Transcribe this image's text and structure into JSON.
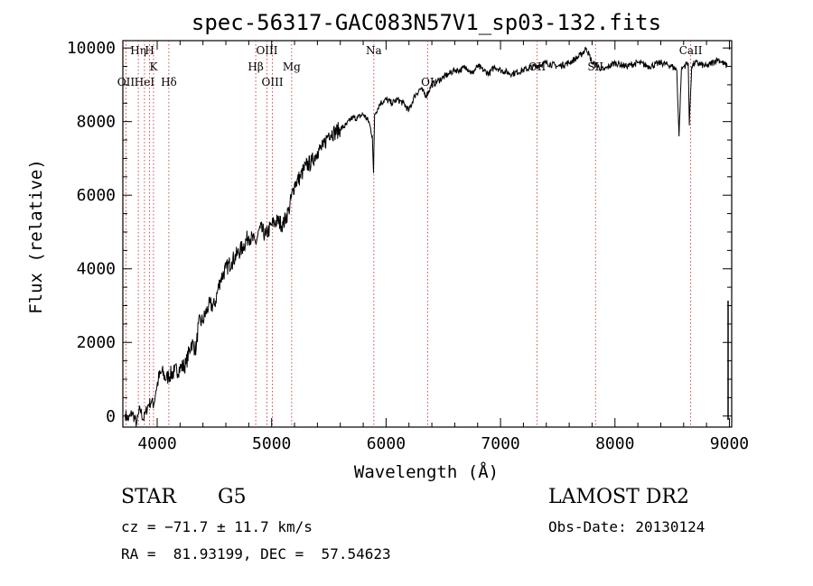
{
  "chart_data": {
    "type": "line",
    "title": "spec-56317-GAC083N57V1_sp03-132.fits",
    "xlabel": "Wavelength (Å)",
    "ylabel": "Flux (relative)",
    "xlim": [
      3700,
      9020
    ],
    "ylim": [
      -300,
      10200
    ],
    "xticks": [
      4000,
      5000,
      6000,
      7000,
      8000,
      9000
    ],
    "xtick_labels": [
      "4000",
      "5000",
      "6000",
      "7000",
      "8000",
      "9000"
    ],
    "yticks": [
      0,
      2000,
      4000,
      6000,
      8000,
      10000
    ],
    "ytick_labels": [
      "0",
      "2000",
      "4000",
      "6000",
      "8000",
      "10000"
    ],
    "grid": false,
    "series": [
      {
        "x": [
          3720,
          3750,
          3780,
          3820,
          3850,
          3880,
          3900,
          3920,
          3950,
          3970,
          3990,
          4010,
          4040,
          4080,
          4100,
          4150,
          4200,
          4250,
          4300,
          4340,
          4360,
          4400,
          4450,
          4500,
          4550,
          4600,
          4650,
          4700,
          4750,
          4800,
          4860,
          4900,
          4950,
          5000,
          5050,
          5100,
          5150,
          5200,
          5250,
          5300,
          5350,
          5400,
          5450,
          5500,
          5550,
          5600,
          5650,
          5700,
          5750,
          5800,
          5850,
          5880,
          5890,
          5900,
          5950,
          6000,
          6050,
          6100,
          6150,
          6200,
          6250,
          6300,
          6350,
          6400,
          6450,
          6500,
          6550,
          6600,
          6650,
          6700,
          6750,
          6800,
          6850,
          6900,
          6950,
          7000,
          7100,
          7200,
          7300,
          7400,
          7500,
          7600,
          7700,
          7750,
          7800,
          7900,
          8000,
          8100,
          8200,
          8300,
          8400,
          8500,
          8540,
          8560,
          8580,
          8600,
          8640,
          8650,
          8670,
          8700,
          8800,
          8900,
          8980
        ],
        "y": [
          50,
          -100,
          100,
          -200,
          200,
          -100,
          100,
          300,
          400,
          300,
          700,
          1000,
          1200,
          1000,
          1100,
          1200,
          1300,
          1400,
          2000,
          1800,
          2500,
          2600,
          3000,
          3000,
          3700,
          4000,
          4200,
          4400,
          4600,
          4900,
          4700,
          5100,
          4900,
          5200,
          5300,
          5200,
          5600,
          6300,
          6500,
          6800,
          6900,
          7200,
          7300,
          7700,
          7700,
          7800,
          7900,
          8100,
          8100,
          8200,
          8000,
          7600,
          6600,
          8200,
          8500,
          8600,
          8500,
          8600,
          8500,
          8300,
          8700,
          8900,
          8700,
          9000,
          9100,
          9200,
          9300,
          9400,
          9400,
          9500,
          9300,
          9500,
          9400,
          9300,
          9500,
          9400,
          9300,
          9400,
          9500,
          9600,
          9500,
          9600,
          9800,
          10000,
          9600,
          9400,
          9600,
          9500,
          9600,
          9500,
          9600,
          9500,
          9400,
          7600,
          9400,
          9500,
          9600,
          7900,
          9500,
          9600,
          9500,
          9700,
          9500
        ]
      }
    ],
    "spectral_lines": [
      {
        "name": "Hη",
        "x": 3835
      },
      {
        "name": "H",
        "x": 3934
      },
      {
        "name": "K",
        "x": 3968
      },
      {
        "name": "OII",
        "x": 3727
      },
      {
        "name": "HeI",
        "x": 3889
      },
      {
        "name": "Hδ",
        "x": 4102
      },
      {
        "name": "Hβ",
        "x": 4861
      },
      {
        "name": "OIII",
        "x": 4959
      },
      {
        "name": "OIII",
        "x": 5007
      },
      {
        "name": "Mg",
        "x": 5175
      },
      {
        "name": "Na",
        "x": 5893
      },
      {
        "name": "OI",
        "x": 6363
      },
      {
        "name": "OII",
        "x": 7320
      },
      {
        "name": "SII",
        "x": 7830
      },
      {
        "name": "CaII",
        "x": 8662
      }
    ]
  },
  "info": {
    "class": "STAR",
    "subclass": "G5",
    "survey": "LAMOST DR2",
    "cz": "cz = −71.7 ± 11.7 km/s",
    "obs_date": "Obs-Date: 20130124",
    "radec": "RA =  81.93199, DEC =  57.54623"
  }
}
